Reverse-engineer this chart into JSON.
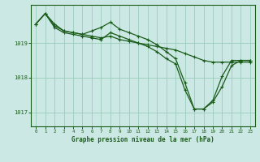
{
  "title": "Graphe pression niveau de la mer (hPa)",
  "background_color": "#cce8e4",
  "plot_bg_color": "#cce8e4",
  "grid_color": "#99ccbb",
  "line_color": "#1a5c1a",
  "marker_color": "#1a5c1a",
  "xlim": [
    -0.5,
    23.5
  ],
  "ylim": [
    1016.6,
    1020.1
  ],
  "yticks": [
    1017,
    1018,
    1019
  ],
  "xticks": [
    0,
    1,
    2,
    3,
    4,
    5,
    6,
    7,
    8,
    9,
    10,
    11,
    12,
    13,
    14,
    15,
    16,
    17,
    18,
    19,
    20,
    21,
    22,
    23
  ],
  "series": [
    [
      1019.55,
      1019.85,
      1019.55,
      1019.35,
      1019.3,
      1019.25,
      1019.2,
      1019.15,
      1019.2,
      1019.1,
      1019.05,
      1019.0,
      1018.95,
      1018.9,
      1018.85,
      1018.8,
      1018.7,
      1018.6,
      1018.5,
      1018.45,
      1018.45,
      1018.45,
      1018.45,
      1018.45
    ],
    [
      1019.55,
      1019.85,
      1019.5,
      1019.35,
      1019.3,
      1019.25,
      1019.35,
      1019.45,
      1019.6,
      1019.4,
      1019.3,
      1019.2,
      1019.1,
      1018.95,
      1018.75,
      1018.55,
      1017.85,
      1017.1,
      1017.1,
      1017.35,
      1018.05,
      1018.5,
      1018.5,
      1018.5
    ],
    [
      1019.55,
      1019.85,
      1019.45,
      1019.3,
      1019.25,
      1019.2,
      1019.15,
      1019.1,
      1019.3,
      1019.2,
      1019.1,
      1019.0,
      1018.9,
      1018.75,
      1018.55,
      1018.4,
      1017.65,
      1017.1,
      1017.1,
      1017.3,
      1017.75,
      1018.35,
      1018.5,
      1018.5
    ]
  ]
}
